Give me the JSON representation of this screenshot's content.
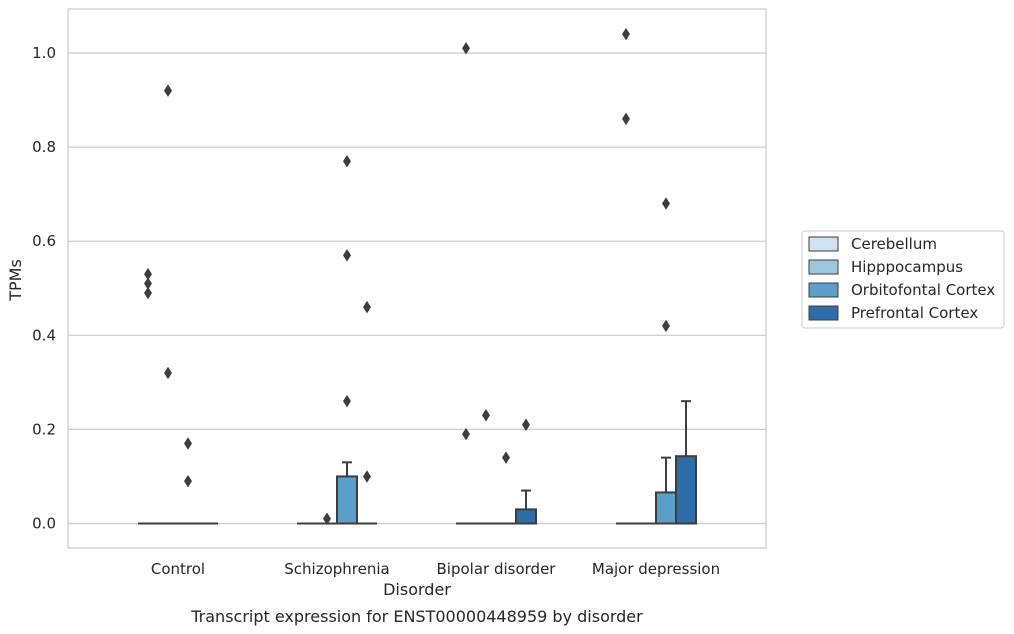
{
  "chart_data": {
    "type": "box",
    "xlabel": "Disorder",
    "ylabel": "TPMs",
    "caption": "Transcript expression for ENST00000448959 by disorder",
    "categories": [
      "Control",
      "Schizophrenia",
      "Bipolar disorder",
      "Major depression"
    ],
    "ylim": [
      -0.05,
      1.09
    ],
    "yticks": [
      0.0,
      0.2,
      0.4,
      0.6,
      0.8,
      1.0
    ],
    "ytick_labels": [
      "0.0",
      "0.2",
      "0.4",
      "0.6",
      "0.8",
      "1.0"
    ],
    "grid": "horizontal",
    "legend": "right",
    "series": [
      {
        "name": "Cerebellum",
        "color": "#d1e2f2",
        "boxes": [
          {
            "q1": 0,
            "median": 0,
            "q3": 0,
            "whisker_low": 0,
            "whisker_high": 0,
            "outliers": [
              0.53,
              0.51,
              0.49
            ]
          },
          {
            "q1": 0,
            "median": 0,
            "q3": 0,
            "whisker_low": 0,
            "whisker_high": 0,
            "outliers": []
          },
          {
            "q1": 0,
            "median": 0,
            "q3": 0,
            "whisker_low": 0,
            "whisker_high": 0,
            "outliers": [
              0.19,
              1.01
            ]
          },
          {
            "q1": 0,
            "median": 0,
            "q3": 0,
            "whisker_low": 0,
            "whisker_high": 0,
            "outliers": [
              1.04,
              0.86
            ]
          }
        ]
      },
      {
        "name": "Hipppocampus",
        "color": "#9ac8e0",
        "boxes": [
          {
            "q1": 0,
            "median": 0,
            "q3": 0,
            "whisker_low": 0,
            "whisker_high": 0,
            "outliers": [
              0.32,
              0.92
            ]
          },
          {
            "q1": 0,
            "median": 0,
            "q3": 0,
            "whisker_low": 0,
            "whisker_high": 0,
            "outliers": [
              0.01
            ]
          },
          {
            "q1": 0,
            "median": 0,
            "q3": 0,
            "whisker_low": 0,
            "whisker_high": 0,
            "outliers": [
              0.23
            ]
          },
          {
            "q1": 0,
            "median": 0,
            "q3": 0,
            "whisker_low": 0,
            "whisker_high": 0,
            "outliers": []
          }
        ]
      },
      {
        "name": "Orbitofontal Cortex",
        "color": "#5a9ec9",
        "boxes": [
          {
            "q1": 0,
            "median": 0,
            "q3": 0,
            "whisker_low": 0,
            "whisker_high": 0,
            "outliers": [
              0.17,
              0.09
            ]
          },
          {
            "q1": 0,
            "median": 0,
            "q3": 0.1,
            "whisker_low": 0,
            "whisker_high": 0.13,
            "outliers": [
              0.77,
              0.57,
              0.26
            ]
          },
          {
            "q1": 0,
            "median": 0,
            "q3": 0,
            "whisker_low": 0,
            "whisker_high": 0,
            "outliers": [
              0.14
            ]
          },
          {
            "q1": 0,
            "median": 0,
            "q3": 0.066,
            "whisker_low": 0,
            "whisker_high": 0.14,
            "outliers": [
              0.68,
              0.42
            ]
          }
        ]
      },
      {
        "name": "Prefrontal Cortex",
        "color": "#2d6ea8",
        "boxes": [
          {
            "q1": 0,
            "median": 0,
            "q3": 0,
            "whisker_low": 0,
            "whisker_high": 0,
            "outliers": []
          },
          {
            "q1": 0,
            "median": 0,
            "q3": 0,
            "whisker_low": 0,
            "whisker_high": 0,
            "outliers": [
              0.46,
              0.1
            ]
          },
          {
            "q1": 0,
            "median": 0,
            "q3": 0.03,
            "whisker_low": 0,
            "whisker_high": 0.07,
            "outliers": [
              0.21
            ]
          },
          {
            "q1": 0,
            "median": 0,
            "q3": 0.143,
            "whisker_low": 0,
            "whisker_high": 0.26,
            "outliers": []
          }
        ]
      }
    ]
  }
}
